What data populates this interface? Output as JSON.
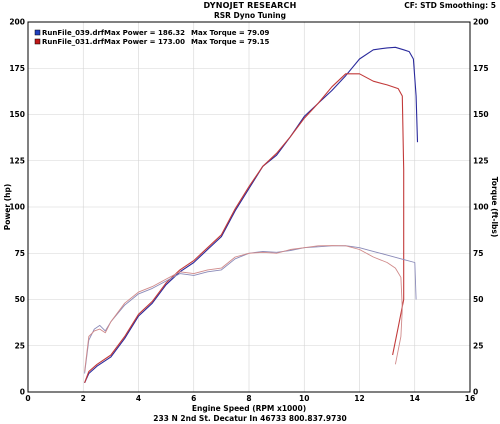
{
  "header": {
    "title": "DYNOJET RESEARCH",
    "subtitle": "RSR Dyno Tuning",
    "settings": "CF: STD  Smoothing: 5"
  },
  "legend": [
    {
      "run": "RunFile_039.drf",
      "max_power_label": "Max Power = 186.32",
      "max_torque_label": "Max Torque = 79.09",
      "color": "#2a2a9c",
      "box_color": "#1f3fbf"
    },
    {
      "run": "RunFile_031.drf",
      "max_power_label": "Max Power = 173.00",
      "max_torque_label": "Max Torque = 79.15",
      "color": "#c23a3a",
      "box_color": "#c01818"
    }
  ],
  "footer": "233 N 2nd St. Decatur In 46733 800.837.9730",
  "chart_data": {
    "type": "line",
    "xlabel": "Engine Speed (RPM x1000)",
    "ylabel": "Power (hp)",
    "ylabel_right": "Torque (ft-lbs)",
    "xlim": [
      0,
      16
    ],
    "ylim": [
      0,
      200
    ],
    "x_ticks": [
      0,
      2,
      4,
      6,
      8,
      10,
      12,
      14,
      16
    ],
    "y_ticks": [
      0,
      25,
      50,
      75,
      100,
      125,
      150,
      175,
      200
    ],
    "grid": true,
    "legend_position": "top-left",
    "series": [
      {
        "name": "RunFile_039.drf",
        "quantity": "power",
        "color": "#2a2a9c",
        "x": [
          2.05,
          2.2,
          2.5,
          3.0,
          3.5,
          4.0,
          4.5,
          5.0,
          5.5,
          6.0,
          6.5,
          7.0,
          7.5,
          8.0,
          8.5,
          9.0,
          9.5,
          10.0,
          10.5,
          11.0,
          11.5,
          12.0,
          12.5,
          13.0,
          13.3,
          13.6,
          13.8,
          13.95,
          14.05,
          14.1
        ],
        "y": [
          5,
          10,
          14,
          19,
          29,
          41,
          48,
          58,
          65,
          70,
          77,
          84,
          98,
          110,
          122,
          128,
          138,
          149,
          156,
          163,
          171,
          180,
          185,
          186,
          186.3,
          185,
          184,
          180,
          160,
          135
        ]
      },
      {
        "name": "RunFile_031.drf",
        "quantity": "power",
        "color": "#c23a3a",
        "x": [
          2.05,
          2.2,
          2.5,
          3.0,
          3.5,
          4.0,
          4.5,
          5.0,
          5.5,
          6.0,
          6.5,
          7.0,
          7.5,
          8.0,
          8.5,
          9.0,
          9.5,
          10.0,
          10.5,
          11.0,
          11.5,
          12.0,
          12.5,
          13.0,
          13.4,
          13.55,
          13.6,
          13.6,
          13.4,
          13.2
        ],
        "y": [
          5,
          11,
          15,
          20,
          30,
          42,
          49,
          59,
          66,
          71,
          78,
          85,
          99,
          111,
          122,
          129,
          138,
          148,
          156,
          165,
          172,
          172,
          168,
          166,
          164,
          160,
          120,
          50,
          35,
          20
        ]
      },
      {
        "name": "RunFile_039.drf",
        "quantity": "torque",
        "color": "#8a8ab8",
        "x": [
          2.05,
          2.2,
          2.4,
          2.6,
          2.8,
          3.0,
          3.5,
          4.0,
          4.5,
          5.0,
          5.5,
          6.0,
          6.5,
          7.0,
          7.5,
          8.0,
          8.5,
          9.0,
          9.5,
          10.0,
          10.5,
          11.0,
          11.5,
          12.0,
          12.5,
          13.0,
          13.5,
          14.0,
          14.05
        ],
        "y": [
          10,
          28,
          34,
          36,
          33,
          38,
          47,
          53,
          56,
          60,
          64,
          63,
          65,
          66,
          72,
          75,
          76,
          75.5,
          76.5,
          78,
          78.5,
          79,
          79.09,
          78,
          76,
          74,
          72,
          70,
          50
        ]
      },
      {
        "name": "RunFile_031.drf",
        "quantity": "torque",
        "color": "#d08a8a",
        "x": [
          2.05,
          2.2,
          2.4,
          2.6,
          2.8,
          3.0,
          3.5,
          4.0,
          4.5,
          5.0,
          5.5,
          6.0,
          6.5,
          7.0,
          7.5,
          8.0,
          8.5,
          9.0,
          9.5,
          10.0,
          10.5,
          11.0,
          11.5,
          12.0,
          12.5,
          13.0,
          13.3,
          13.5,
          13.55,
          13.5,
          13.3
        ],
        "y": [
          11,
          30,
          33,
          34,
          32,
          38,
          48,
          54,
          57,
          61,
          65,
          64,
          66,
          67,
          73,
          75,
          75.5,
          75,
          77,
          78,
          79,
          79.15,
          79,
          77,
          73,
          70,
          67,
          62,
          45,
          30,
          15
        ]
      }
    ]
  }
}
